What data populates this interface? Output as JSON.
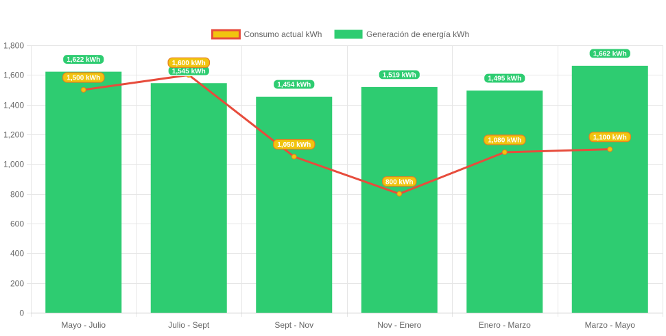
{
  "chart_data": {
    "type": "bar",
    "categories": [
      "Mayo - Julio",
      "Julio - Sept",
      "Sept - Nov",
      "Nov - Enero",
      "Enero - Marzo",
      "Marzo - Mayo"
    ],
    "series": [
      {
        "name": "Generación de energía kWh",
        "type": "bar",
        "values": [
          1622,
          1545,
          1454,
          1519,
          1495,
          1662
        ],
        "labels": [
          "1,622 kWh",
          "1,545 kWh",
          "1,454 kWh",
          "1,519 kWh",
          "1,495 kWh",
          "1,662 kWh"
        ],
        "color": "#2ecc71"
      },
      {
        "name": "Consumo actual kWh",
        "type": "line",
        "values": [
          1500,
          1600,
          1050,
          800,
          1080,
          1100
        ],
        "labels": [
          "1,500 kWh",
          "1,600 kWh",
          "1,050 kWh",
          "800 kWh",
          "1,080 kWh",
          "1,100 kWh"
        ],
        "color": "#e74c3c",
        "fill_color": "#f1c40f"
      }
    ],
    "ylim": [
      0,
      1800
    ],
    "yticks": [
      0,
      200,
      400,
      600,
      800,
      1000,
      1200,
      1400,
      1600,
      1800
    ],
    "ytick_labels": [
      "0",
      "200",
      "400",
      "600",
      "800",
      "1,000",
      "1,200",
      "1,400",
      "1,600",
      "1,800"
    ],
    "legend_position": "top-center",
    "grid": true
  }
}
